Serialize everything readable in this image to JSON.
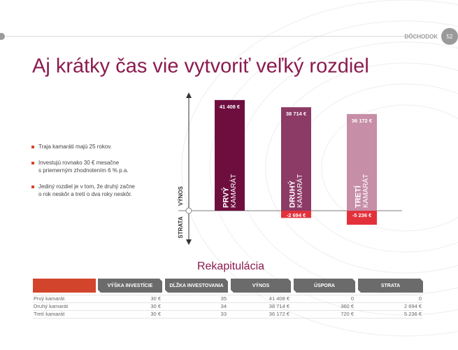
{
  "header": {
    "section": "DÔCHODOK",
    "page": "52"
  },
  "title": "Aj krátky čas vie vytvoriť veľký rozdiel",
  "bullets": [
    [
      "Traja kamaráti majú 25 rokov."
    ],
    [
      "Investujú rovnako 30 € mesačne",
      "s priemerným zhodnotením 6 % p.a."
    ],
    [
      "Jediný rozdiel je v tom, že druhý začne",
      "o rok neskôr a tretí o dva roky neskôr."
    ]
  ],
  "chart_data": {
    "type": "bar",
    "categories": [
      [
        "PRVÝ",
        "KAMARÁT"
      ],
      [
        "DRUHÝ",
        "KAMARÁT"
      ],
      [
        "TRETÍ",
        "KAMARÁT"
      ]
    ],
    "series": [
      {
        "name": "VÝNOS",
        "colors": [
          "#6e0e3f",
          "#8c3a66",
          "#c78ea7"
        ],
        "values": [
          41408,
          38714,
          36172
        ],
        "value_labels": [
          "41 408 €",
          "38 714 €",
          "36 172 €"
        ]
      },
      {
        "name": "STRATA",
        "color": "#e3313b",
        "values": [
          null,
          -2694,
          -5236
        ],
        "value_labels": [
          null,
          "-2 694 €",
          "-5 236 €"
        ]
      }
    ],
    "ylim": [
      -12300,
      44000
    ]
  },
  "table": {
    "title": "Rekapitulácia",
    "header": [
      "VÝŠKA INVESTÍCIE",
      "DĹŽKA INVESTOVANIA",
      "VÝNOS",
      "ÚSPORA",
      "STRATA"
    ],
    "rows": [
      [
        "Prvý kamarát",
        "30 €",
        "35",
        "41 408 €",
        "0",
        "0"
      ],
      [
        "Druhý kamarát",
        "30 €",
        "34",
        "38 714 €",
        "360 €",
        "2 694 €"
      ],
      [
        "Tretí kamarát",
        "30 €",
        "33",
        "36 172 €",
        "720 €",
        "5 236 €"
      ]
    ]
  }
}
